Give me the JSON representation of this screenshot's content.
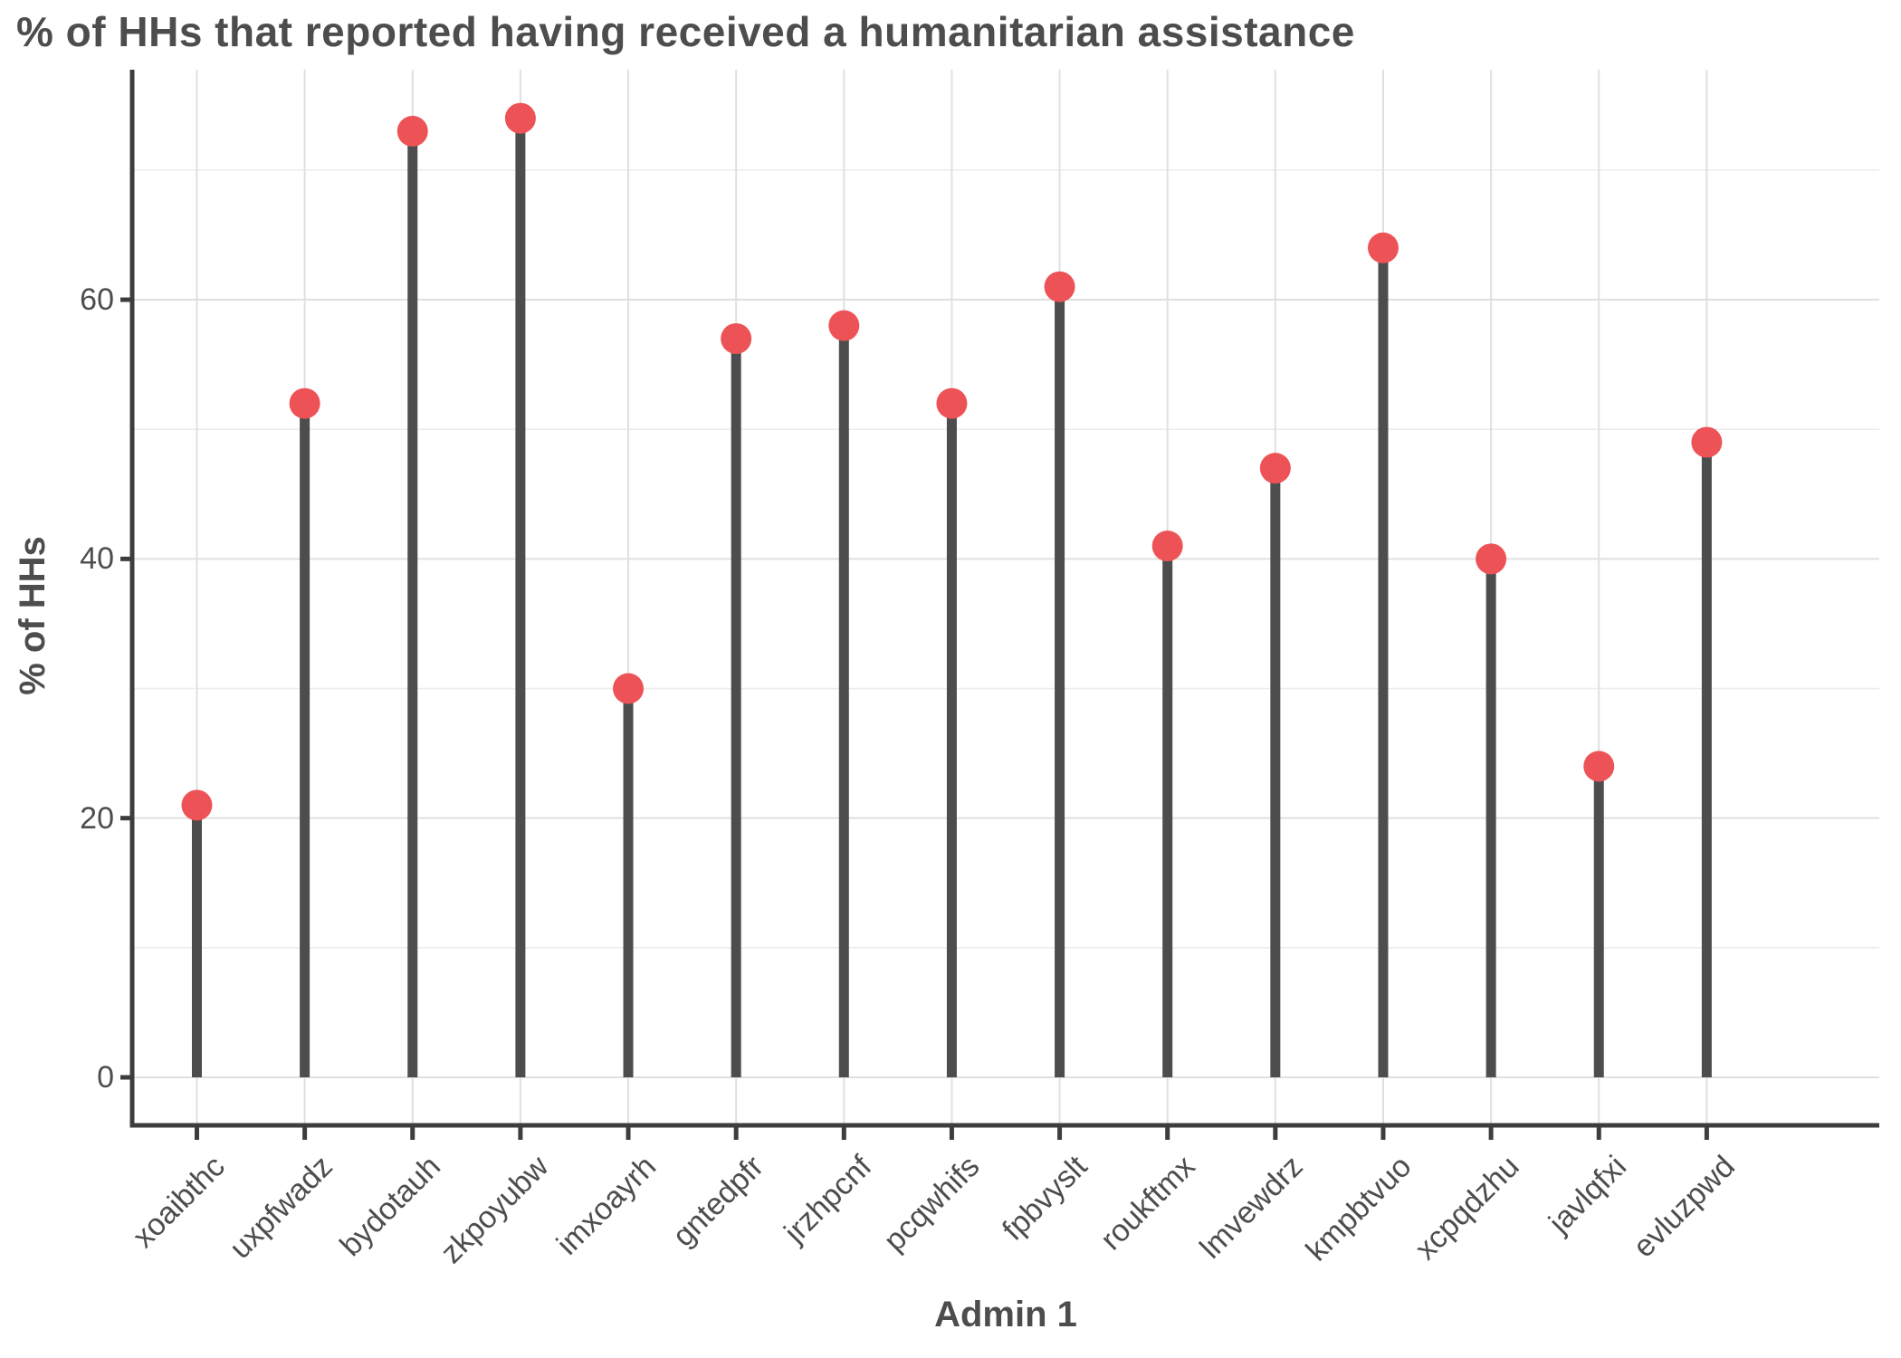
{
  "title": "% of HHs that reported having received a humanitarian assistance",
  "chart_data": {
    "type": "lollipop",
    "title": "% of HHs that reported having received a humanitarian assistance",
    "xlabel": "Admin 1",
    "ylabel": "% of HHs",
    "categories": [
      "xoaibthc",
      "uxpfwadz",
      "bydotauh",
      "zkpoyubw",
      "imxoayrh",
      "gntedpfr",
      "jrzhpcnf",
      "pcqwhifs",
      "fpbvyslt",
      "roukftmx",
      "lmvewdrz",
      "kmpbtvuo",
      "xcpqdzhu",
      "javlqfxi",
      "evluzpwd"
    ],
    "values": [
      21,
      52,
      73,
      74,
      30,
      57,
      58,
      52,
      61,
      41,
      47,
      64,
      40,
      24,
      49
    ],
    "ylim": [
      0,
      77.7
    ],
    "yticks": [
      0,
      20,
      40,
      60
    ],
    "yminor": [
      10,
      30,
      50,
      70
    ],
    "grid": "on",
    "legend": "none",
    "colors": {
      "point": "#ed5356",
      "stem": "#4d4d4d",
      "axis_line": "#3d3d3d",
      "grid_major": "#e0e0e0",
      "grid_minor": "#ececec",
      "text": "#4d4d4d"
    }
  }
}
